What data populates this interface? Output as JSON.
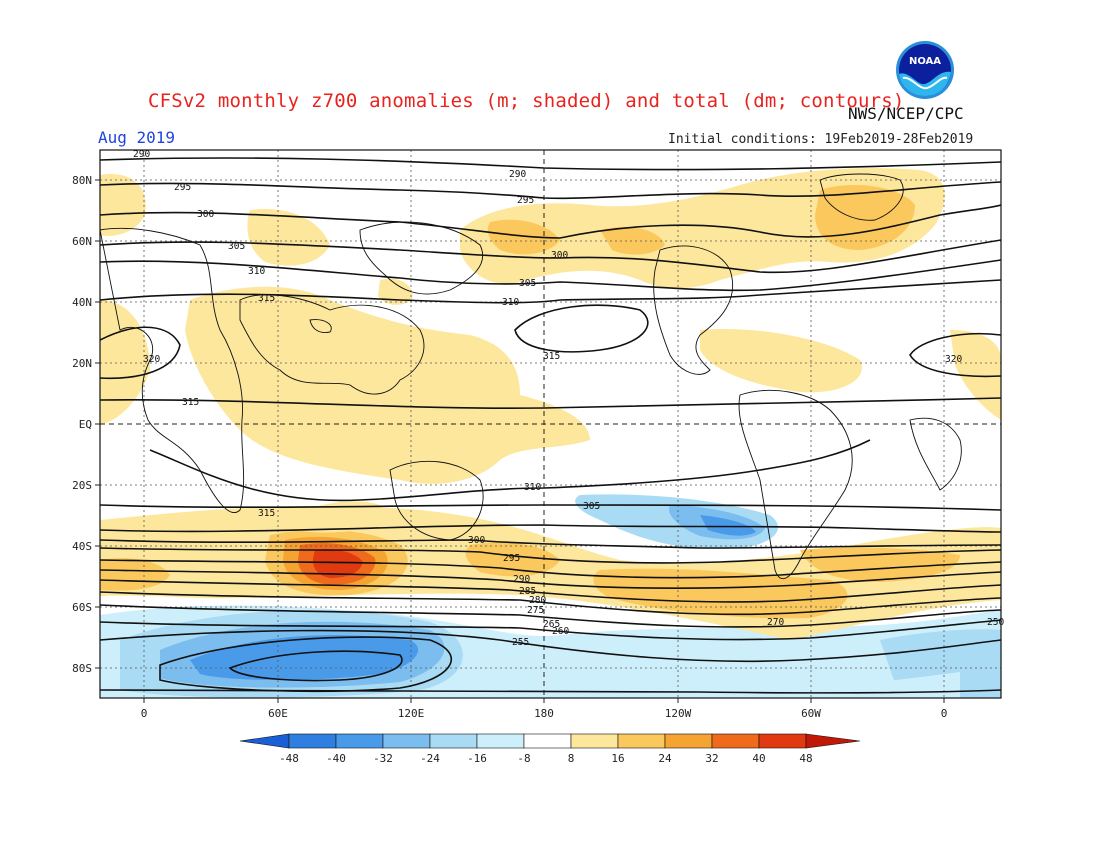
{
  "header": {
    "title": "CFSv2 monthly z700 anomalies (m; shaded) and total (dm; contours)",
    "agency": "NWS/NCEP/CPC",
    "month": "Aug 2019",
    "initial_conditions": "Initial conditions: 19Feb2019-28Feb2019",
    "logo_text": "NOAA"
  },
  "map": {
    "lat_labels": [
      "80N",
      "60N",
      "40N",
      "20N",
      "EQ",
      "20S",
      "40S",
      "60S",
      "80S"
    ],
    "lon_labels": [
      "0",
      "60E",
      "120E",
      "180",
      "120W",
      "60W",
      "0"
    ],
    "contour_labels": [
      {
        "text": "290",
        "kind": "top-left"
      },
      {
        "text": "295"
      },
      {
        "text": "300"
      },
      {
        "text": "305"
      },
      {
        "text": "310"
      },
      {
        "text": "315"
      },
      {
        "text": "320"
      },
      {
        "text": "290"
      },
      {
        "text": "295"
      },
      {
        "text": "300"
      },
      {
        "text": "305"
      },
      {
        "text": "310"
      },
      {
        "text": "315"
      },
      {
        "text": "320"
      },
      {
        "text": "315"
      },
      {
        "text": "315"
      },
      {
        "text": "310"
      },
      {
        "text": "305"
      },
      {
        "text": "300"
      },
      {
        "text": "295"
      },
      {
        "text": "290"
      },
      {
        "text": "285"
      },
      {
        "text": "280"
      },
      {
        "text": "275"
      },
      {
        "text": "270"
      },
      {
        "text": "265"
      },
      {
        "text": "260"
      },
      {
        "text": "255"
      },
      {
        "text": "250"
      }
    ],
    "colors": {
      "neg48": "#1a5fd6",
      "neg40": "#2e7fe0",
      "neg32": "#4a9aea",
      "neg24": "#7cbdf0",
      "neg16": "#a9dbf5",
      "neg8": "#cdeffb",
      "zero": "#ffffff",
      "pos8": "#fde79c",
      "pos16": "#fbc85e",
      "pos24": "#f6a431",
      "pos32": "#f06a1c",
      "pos40": "#e13a10",
      "pos48": "#c21808"
    }
  },
  "colorbar": {
    "labels": [
      "-48",
      "-40",
      "-32",
      "-24",
      "-16",
      "-8",
      "8",
      "16",
      "24",
      "32",
      "40",
      "48"
    ]
  }
}
